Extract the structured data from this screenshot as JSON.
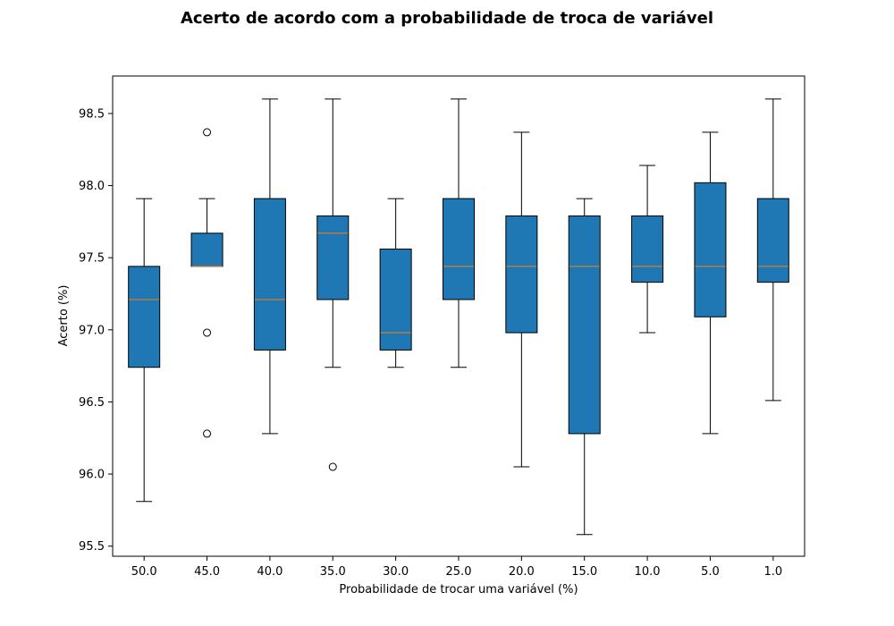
{
  "chart_data": {
    "type": "boxplot",
    "title": "Acerto de acordo com a probabilidade de troca de variável",
    "xlabel": "Probabilidade de trocar uma variável (%)",
    "ylabel": "Acerto (%)",
    "ylim": [
      95.43,
      98.76
    ],
    "yticks": [
      "95.5",
      "96.0",
      "96.5",
      "97.0",
      "97.5",
      "98.0",
      "98.5"
    ],
    "grid": false,
    "box_color": "#1f77b4",
    "median_color": "#ff7f0e",
    "categories": [
      "50.0",
      "45.0",
      "40.0",
      "35.0",
      "30.0",
      "25.0",
      "20.0",
      "15.0",
      "10.0",
      "5.0",
      "1.0"
    ],
    "boxes": [
      {
        "whisker_low": 95.81,
        "q1": 96.74,
        "median": 97.21,
        "q3": 97.44,
        "whisker_high": 97.91,
        "fliers": []
      },
      {
        "whisker_low": 97.44,
        "q1": 97.44,
        "median": 97.44,
        "q3": 97.67,
        "whisker_high": 97.91,
        "fliers": [
          98.37,
          96.98,
          96.28
        ]
      },
      {
        "whisker_low": 96.28,
        "q1": 96.86,
        "median": 97.21,
        "q3": 97.91,
        "whisker_high": 98.6,
        "fliers": []
      },
      {
        "whisker_low": 96.74,
        "q1": 97.21,
        "median": 97.67,
        "q3": 97.79,
        "whisker_high": 98.6,
        "fliers": [
          96.05
        ]
      },
      {
        "whisker_low": 96.74,
        "q1": 96.86,
        "median": 96.98,
        "q3": 97.56,
        "whisker_high": 97.91,
        "fliers": []
      },
      {
        "whisker_low": 96.74,
        "q1": 97.21,
        "median": 97.44,
        "q3": 97.91,
        "whisker_high": 98.6,
        "fliers": []
      },
      {
        "whisker_low": 96.05,
        "q1": 96.98,
        "median": 97.44,
        "q3": 97.79,
        "whisker_high": 98.37,
        "fliers": []
      },
      {
        "whisker_low": 95.58,
        "q1": 96.28,
        "median": 97.44,
        "q3": 97.79,
        "whisker_high": 97.91,
        "fliers": []
      },
      {
        "whisker_low": 96.98,
        "q1": 97.33,
        "median": 97.44,
        "q3": 97.79,
        "whisker_high": 98.14,
        "fliers": []
      },
      {
        "whisker_low": 96.28,
        "q1": 97.09,
        "median": 97.44,
        "q3": 98.02,
        "whisker_high": 98.37,
        "fliers": []
      },
      {
        "whisker_low": 96.51,
        "q1": 97.33,
        "median": 97.44,
        "q3": 97.91,
        "whisker_high": 98.6,
        "fliers": []
      }
    ]
  }
}
